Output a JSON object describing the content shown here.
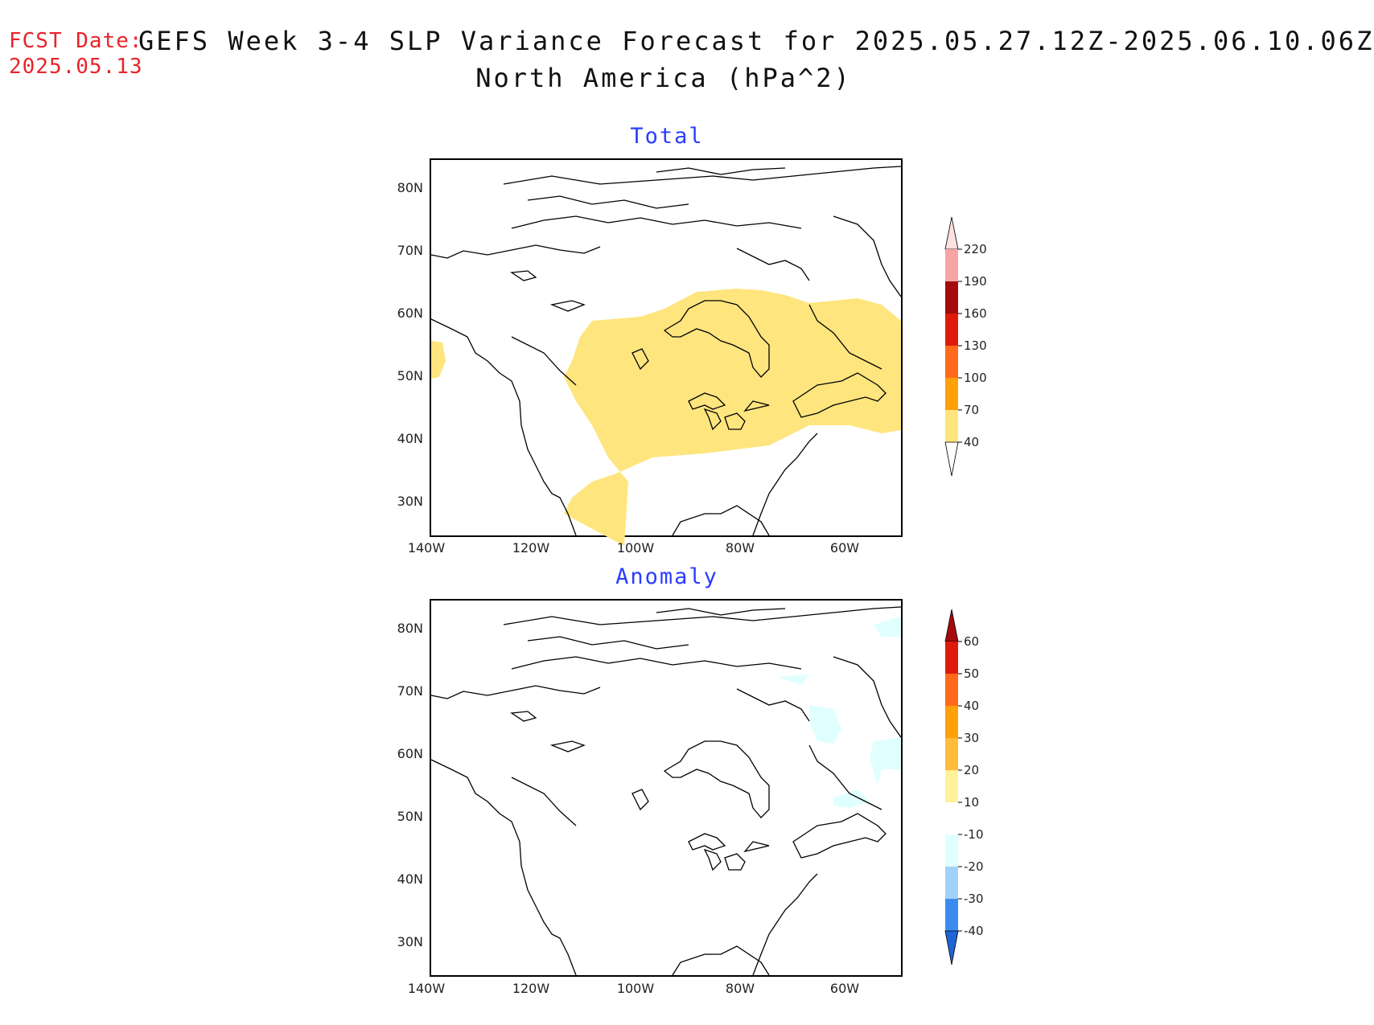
{
  "header": {
    "fcst_label": "FCST Date:",
    "fcst_date": "2025.05.13",
    "title": "GEFS Week 3-4 SLP Variance Forecast for 2025.05.27.12Z-2025.06.10.06Z",
    "subtitle": "North America (hPa^2)"
  },
  "axes": {
    "lat_labels": [
      "80N",
      "70N",
      "60N",
      "50N",
      "40N",
      "30N"
    ],
    "lon_labels": [
      "140W",
      "120W",
      "100W",
      "80W",
      "60W"
    ]
  },
  "panels": [
    {
      "title": "Total",
      "colorbar": {
        "labels": [
          "220",
          "190",
          "160",
          "130",
          "100",
          "70",
          "40"
        ],
        "colors": [
          "#f6a5a5",
          "#a50a0a",
          "#e01a0a",
          "#ff6a1a",
          "#ff9f0a",
          "#ffd66a",
          "#ffe57e"
        ],
        "top_arrow_color": "#fde0e0",
        "bottom_arrow_color": "#ffffff"
      },
      "shaded_region": "Yellow 40-70 hPa^2 band across central and eastern Canada and the northern US"
    },
    {
      "title": "Anomaly",
      "colorbar": {
        "labels": [
          "60",
          "50",
          "40",
          "30",
          "20",
          "10",
          "-10",
          "-20",
          "-30",
          "-40"
        ],
        "colors": [
          "#e01a0a",
          "#ff6a1a",
          "#ff9f0a",
          "#ffbb3a",
          "#fff29a",
          "#ffffff",
          "#e0ffff",
          "#a0d2fa",
          "#3c8cf0"
        ],
        "top_arrow_color": "#a50a0a",
        "bottom_arrow_color": "#1f64d4"
      }
    }
  ]
}
